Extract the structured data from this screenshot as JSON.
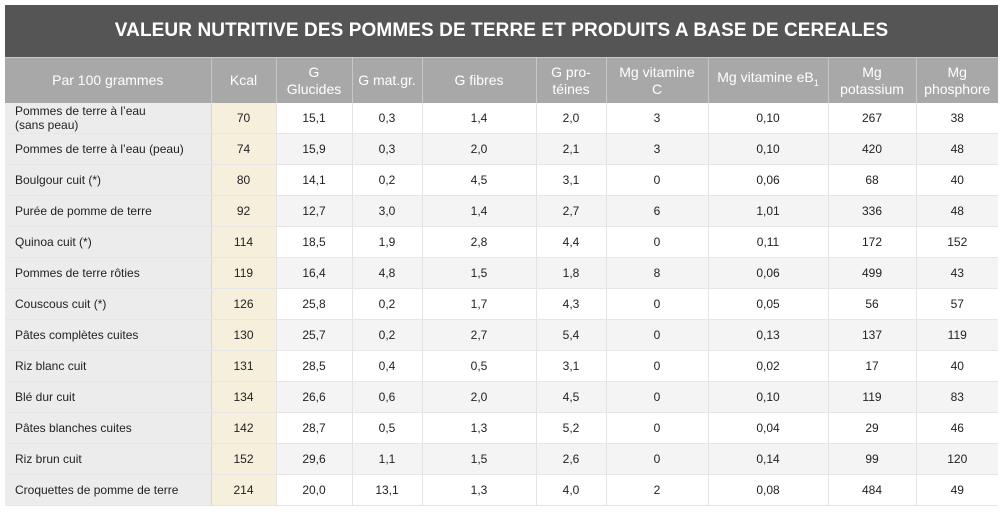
{
  "title": "VALEUR NUTRITIVE DES POMMES DE TERRE ET PRODUITS A BASE DE CEREALES",
  "headers": [
    [
      "Par 100 grammes",
      ""
    ],
    [
      "Kcal",
      ""
    ],
    [
      "G",
      "Glucides"
    ],
    [
      "G mat.gr.",
      ""
    ],
    [
      "G fibres",
      ""
    ],
    [
      "G pro-",
      "téines"
    ],
    [
      "Mg vitamine",
      "C"
    ],
    [
      "Mg vitamine eB",
      "1"
    ],
    [
      "Mg",
      "potassium"
    ],
    [
      "Mg",
      "phosphore"
    ]
  ],
  "rows": [
    {
      "label": [
        "Pommes de terre à l’eau",
        "(sans peau)"
      ],
      "values": [
        "70",
        "15,1",
        "0,3",
        "1,4",
        "2,0",
        "3",
        "0,10",
        "267",
        "38"
      ]
    },
    {
      "label": [
        "Pommes de terre à l’eau (peau)"
      ],
      "values": [
        "74",
        "15,9",
        "0,3",
        "2,0",
        "2,1",
        "3",
        "0,10",
        "420",
        "48"
      ]
    },
    {
      "label": [
        "Boulgour cuit (*)"
      ],
      "values": [
        "80",
        "14,1",
        "0,2",
        "4,5",
        "3,1",
        "0",
        "0,06",
        "68",
        "40"
      ]
    },
    {
      "label": [
        "Purée de pomme de terre"
      ],
      "values": [
        "92",
        "12,7",
        "3,0",
        "1,4",
        "2,7",
        "6",
        "1,01",
        "336",
        "48"
      ]
    },
    {
      "label": [
        "Quinoa cuit (*)"
      ],
      "values": [
        "114",
        "18,5",
        "1,9",
        "2,8",
        "4,4",
        "0",
        "0,11",
        "172",
        "152"
      ]
    },
    {
      "label": [
        "Pommes de terre rôties"
      ],
      "values": [
        "119",
        "16,4",
        "4,8",
        "1,5",
        "1,8",
        "8",
        "0,06",
        "499",
        "43"
      ]
    },
    {
      "label": [
        "Couscous cuit (*)"
      ],
      "values": [
        "126",
        "25,8",
        "0,2",
        "1,7",
        "4,3",
        "0",
        "0,05",
        "56",
        "57"
      ]
    },
    {
      "label": [
        "Pâtes complètes cuites"
      ],
      "values": [
        "130",
        "25,7",
        "0,2",
        "2,7",
        "5,4",
        "0",
        "0,13",
        "137",
        "119"
      ]
    },
    {
      "label": [
        "Riz blanc cuit"
      ],
      "values": [
        "131",
        "28,5",
        "0,4",
        "0,5",
        "3,1",
        "0",
        "0,02",
        "17",
        "40"
      ]
    },
    {
      "label": [
        "Blé dur cuit"
      ],
      "values": [
        "134",
        "26,6",
        "0,6",
        "2,0",
        "4,5",
        "0",
        "0,10",
        "119",
        "83"
      ]
    },
    {
      "label": [
        "Pâtes blanches cuites"
      ],
      "values": [
        "142",
        "28,7",
        "0,5",
        "1,3",
        "5,2",
        "0",
        "0,04",
        "29",
        "46"
      ]
    },
    {
      "label": [
        "Riz brun cuit"
      ],
      "values": [
        "152",
        "29,6",
        "1,1",
        "1,5",
        "2,6",
        "0",
        "0,14",
        "99",
        "120"
      ]
    },
    {
      "label": [
        "Croquettes de pomme de terre"
      ],
      "values": [
        "214",
        "20,0",
        "13,1",
        "1,3",
        "4,0",
        "2",
        "0,08",
        "484",
        "49"
      ]
    }
  ]
}
